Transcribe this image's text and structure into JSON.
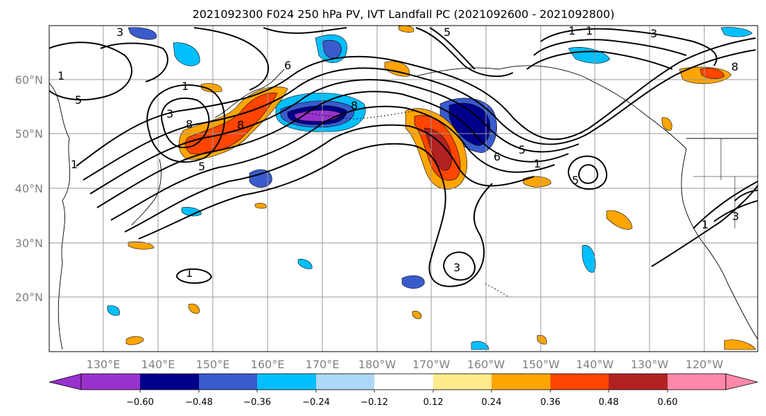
{
  "title": "2021092300 F024 250 hPa PV, IVT Landfall PC (2021092600 - 2021092800)",
  "map": {
    "lon_labels": [
      "130°E",
      "140°E",
      "150°E",
      "160°E",
      "170°E",
      "180°W",
      "170°W",
      "160°W",
      "150°W",
      "140°W",
      "130°W",
      "120°W"
    ],
    "lat_labels": [
      "20°N",
      "30°N",
      "40°N",
      "50°N",
      "60°N"
    ],
    "contour_labels": [
      "1",
      "3",
      "5",
      "8",
      "1",
      "5",
      "8",
      "1",
      "3",
      "6",
      "5",
      "8",
      "1",
      "3",
      "1",
      "6",
      "5",
      "8",
      "1",
      "5",
      "1",
      "3",
      "1",
      "3"
    ]
  },
  "colorbar": {
    "colors": [
      "#9932cc",
      "#00008b",
      "#3a5bcc",
      "#00bfff",
      "#add8f5",
      "#ffffff",
      "#ffeb8c",
      "#ffa500",
      "#ff4500",
      "#b22222",
      "#ff88aa"
    ],
    "tick_labels": [
      "−0.60",
      "−0.48",
      "−0.36",
      "−0.24",
      "−0.12",
      "0.12",
      "0.24",
      "0.36",
      "0.48",
      "0.60"
    ]
  }
}
